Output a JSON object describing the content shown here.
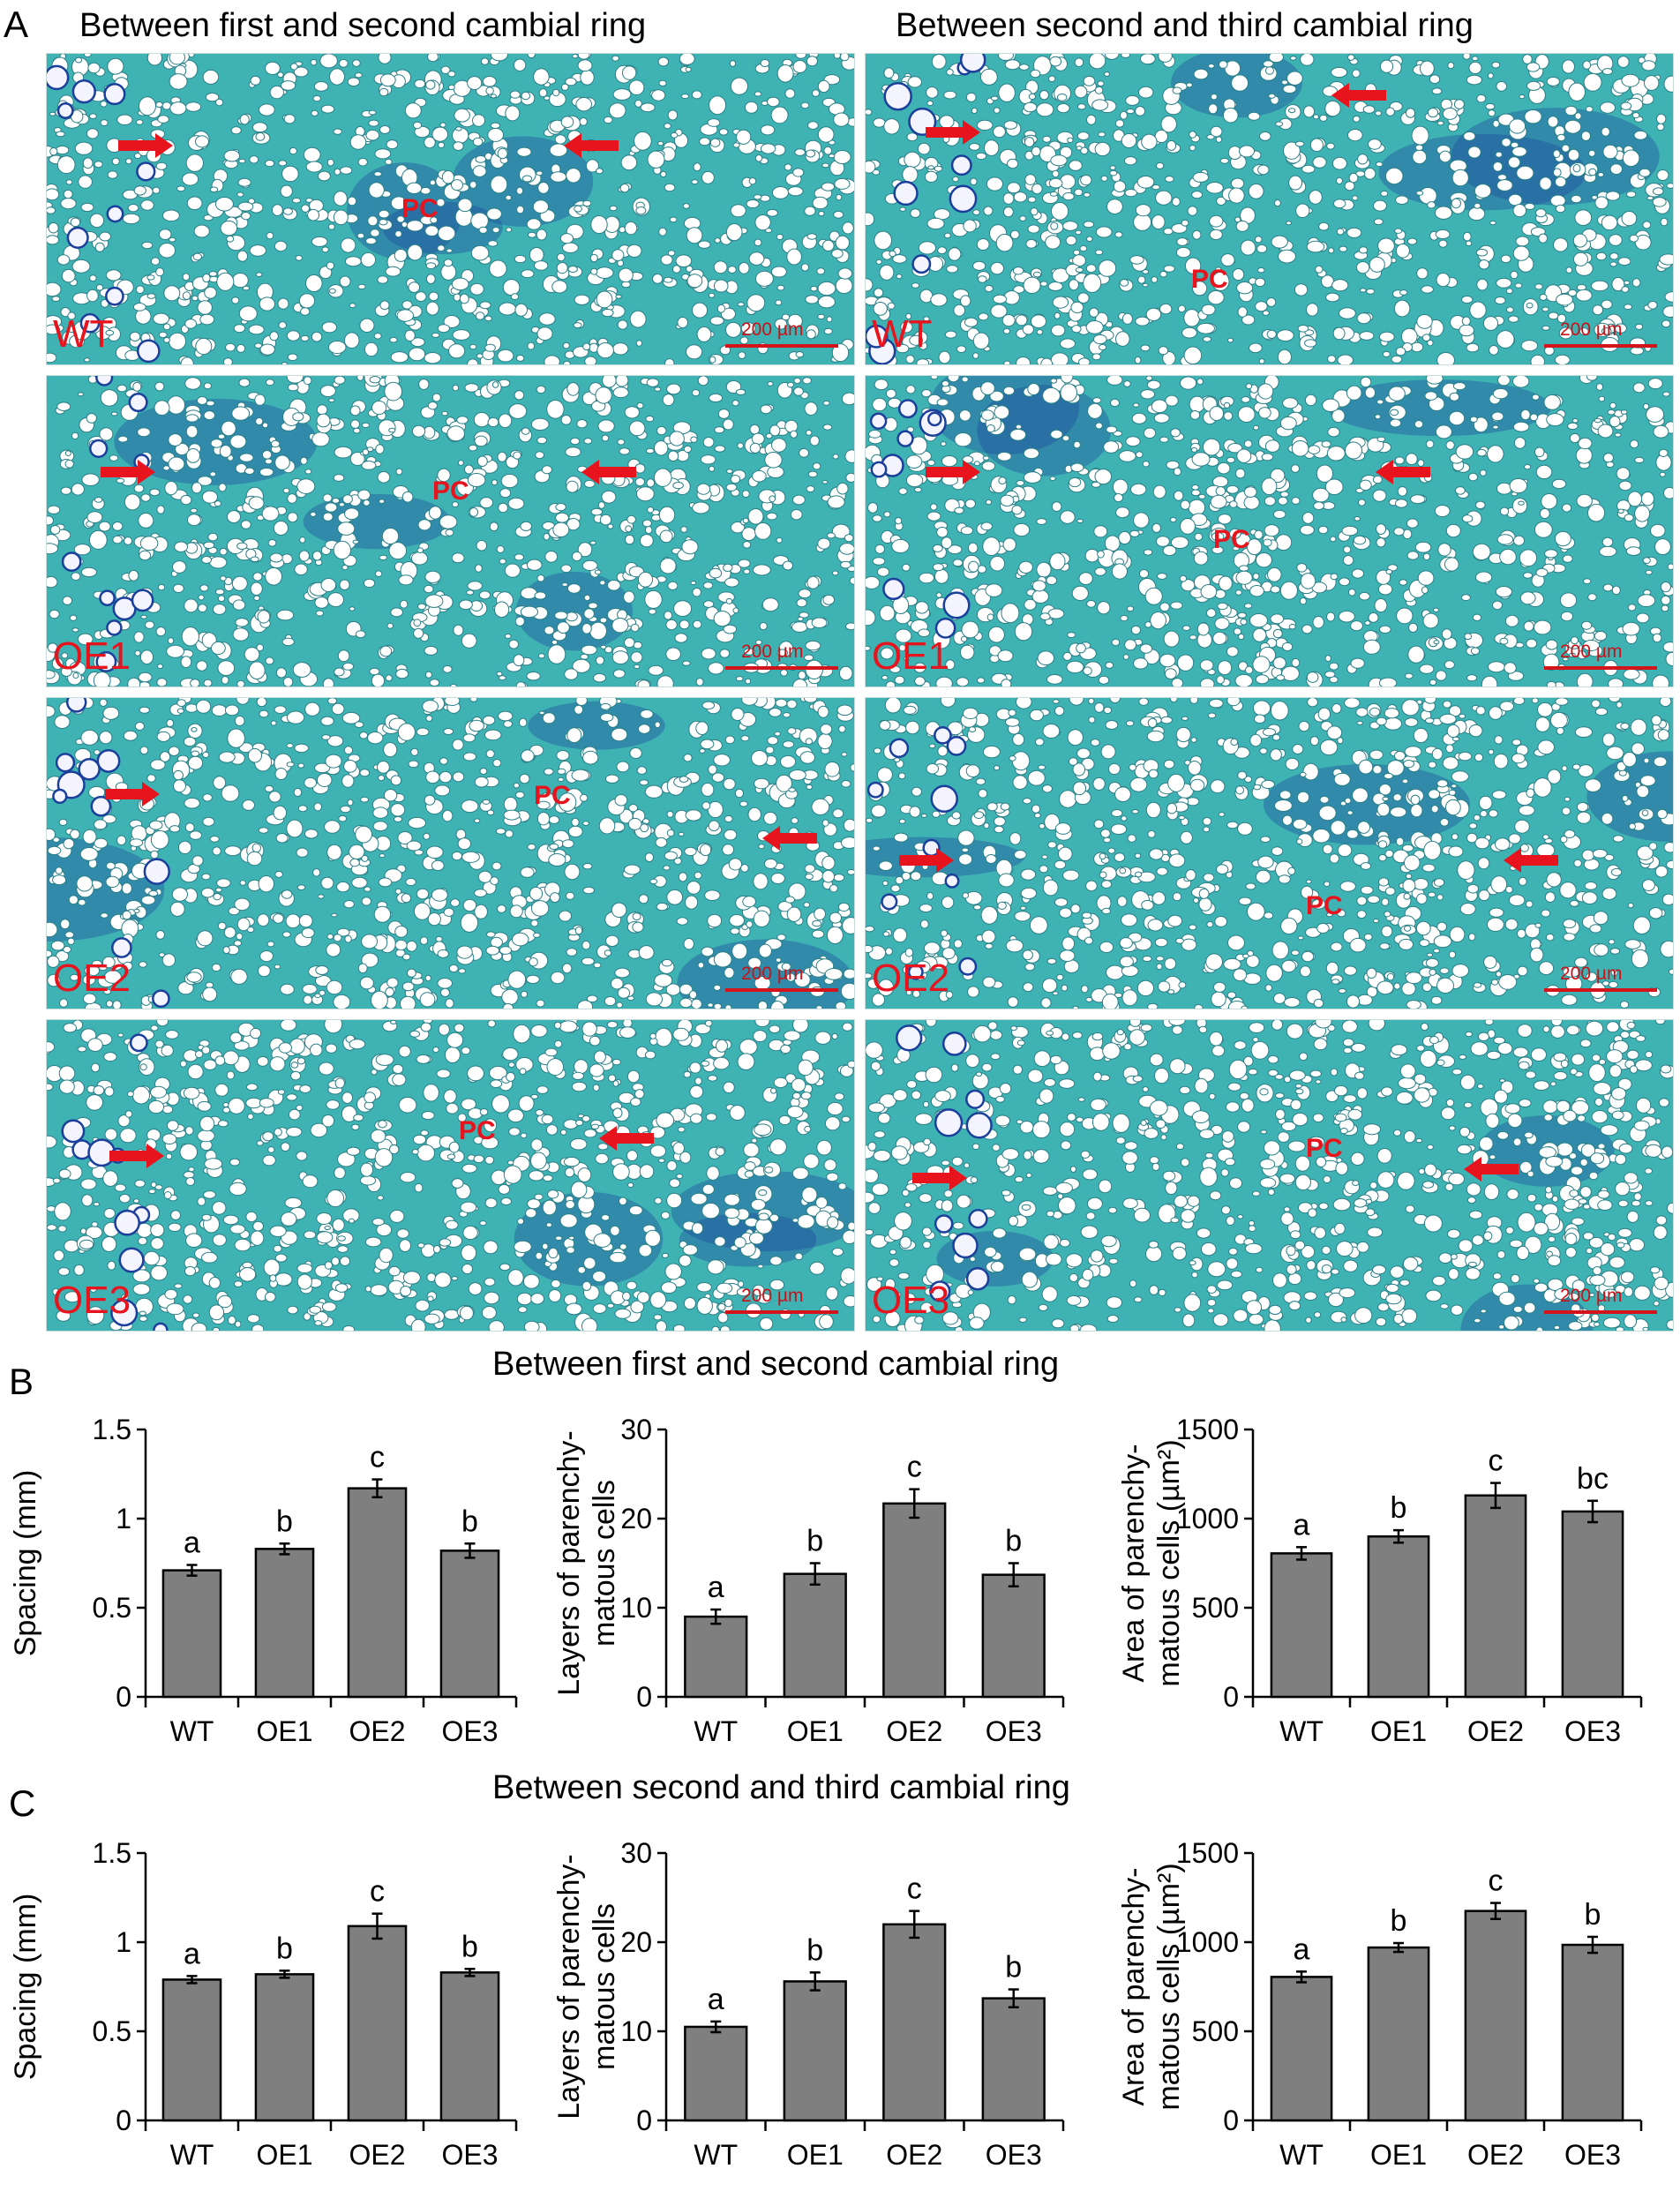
{
  "panel_a": {
    "letter": "A",
    "columns": [
      "Between first and second cambial ring",
      "Between second and third cambial ring"
    ],
    "rows": [
      "WT",
      "OE1",
      "OE2",
      "OE3"
    ],
    "region_label": "PC",
    "scale_label": "200 µm",
    "colors": {
      "tissue": "#3fb3b3",
      "cell": "#ffffff",
      "stain": "#1b3f9a",
      "mark": "#e8141d"
    }
  },
  "panel_b": {
    "letter": "B",
    "title": "Between first and second cambial ring"
  },
  "panel_c": {
    "letter": "C",
    "title": "Between second and third cambial ring"
  },
  "chart_data": [
    {
      "id": "b1",
      "type": "bar",
      "categories": [
        "WT",
        "OE1",
        "OE2",
        "OE3"
      ],
      "values": [
        0.71,
        0.83,
        1.17,
        0.82
      ],
      "errors": [
        0.03,
        0.03,
        0.05,
        0.04
      ],
      "sig": [
        "a",
        "b",
        "c",
        "b"
      ],
      "ylabel": [
        "Spacing (mm)"
      ],
      "ylim": [
        0,
        1.5
      ],
      "yticks": [
        0,
        0.5,
        1,
        1.5
      ],
      "ytick_labels": [
        "0",
        "0.5",
        "1",
        "1.5"
      ]
    },
    {
      "id": "b2",
      "type": "bar",
      "categories": [
        "WT",
        "OE1",
        "OE2",
        "OE3"
      ],
      "values": [
        9,
        13.8,
        21.7,
        13.7
      ],
      "errors": [
        0.8,
        1.2,
        1.6,
        1.3
      ],
      "sig": [
        "a",
        "b",
        "c",
        "b"
      ],
      "ylabel": [
        "Layers of parenchy-",
        "matous cells"
      ],
      "ylim": [
        0,
        30
      ],
      "yticks": [
        0,
        10,
        20,
        30
      ],
      "ytick_labels": [
        "0",
        "10",
        "20",
        "30"
      ]
    },
    {
      "id": "b3",
      "type": "bar",
      "categories": [
        "WT",
        "OE1",
        "OE2",
        "OE3"
      ],
      "values": [
        805,
        900,
        1130,
        1040
      ],
      "errors": [
        35,
        35,
        70,
        60
      ],
      "sig": [
        "a",
        "b",
        "c",
        "bc"
      ],
      "ylabel": [
        "Area of parenchy-",
        "matous cells (µm²)"
      ],
      "ylim": [
        0,
        1500
      ],
      "yticks": [
        0,
        500,
        1000,
        1500
      ],
      "ytick_labels": [
        "0",
        "500",
        "1000",
        "1500"
      ]
    },
    {
      "id": "c1",
      "type": "bar",
      "categories": [
        "WT",
        "OE1",
        "OE2",
        "OE3"
      ],
      "values": [
        0.79,
        0.82,
        1.09,
        0.83
      ],
      "errors": [
        0.02,
        0.02,
        0.07,
        0.02
      ],
      "sig": [
        "a",
        "b",
        "c",
        "b"
      ],
      "ylabel": [
        "Spacing (mm)"
      ],
      "ylim": [
        0,
        1.5
      ],
      "yticks": [
        0,
        0.5,
        1,
        1.5
      ],
      "ytick_labels": [
        "0",
        "0.5",
        "1",
        "1.5"
      ]
    },
    {
      "id": "c2",
      "type": "bar",
      "categories": [
        "WT",
        "OE1",
        "OE2",
        "OE3"
      ],
      "values": [
        10.5,
        15.6,
        22,
        13.7
      ],
      "errors": [
        0.6,
        1.0,
        1.5,
        1.0
      ],
      "sig": [
        "a",
        "b",
        "c",
        "b"
      ],
      "ylabel": [
        "Layers of parenchy-",
        "matous cells"
      ],
      "ylim": [
        0,
        30
      ],
      "yticks": [
        0,
        10,
        20,
        30
      ],
      "ytick_labels": [
        "0",
        "10",
        "20",
        "30"
      ]
    },
    {
      "id": "c3",
      "type": "bar",
      "categories": [
        "WT",
        "OE1",
        "OE2",
        "OE3"
      ],
      "values": [
        805,
        970,
        1175,
        985
      ],
      "errors": [
        30,
        25,
        45,
        45
      ],
      "sig": [
        "a",
        "b",
        "c",
        "b"
      ],
      "ylabel": [
        "Area of parenchy-",
        "matous cells (µm²)"
      ],
      "ylim": [
        0,
        1500
      ],
      "yticks": [
        0,
        500,
        1000,
        1500
      ],
      "ytick_labels": [
        "0",
        "500",
        "1000",
        "1500"
      ]
    }
  ],
  "chart_style": {
    "bar_fill": "#7f7f7f",
    "bar_stroke": "#000000",
    "error_color": "#000000"
  }
}
